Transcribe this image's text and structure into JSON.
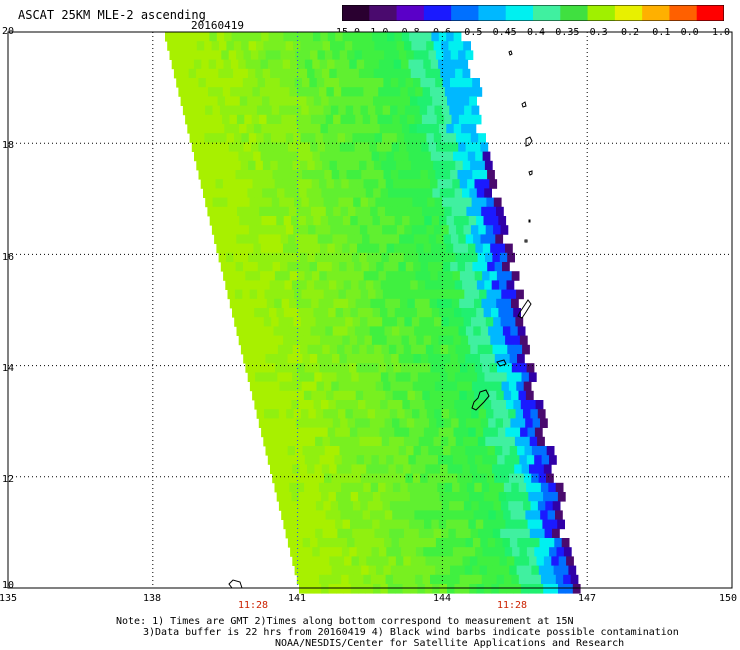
{
  "title": "ASCAT 25KM MLE-2 ascending",
  "date": "20160419",
  "colorbar": {
    "labels": [
      "-15.0",
      "-1.0",
      "-0.8",
      "-0.6",
      "-0.5",
      "-0.45",
      "-0.4",
      "-0.35",
      "-0.3",
      "-0.2",
      "-0.1",
      "0.0",
      "1.0"
    ],
    "colors": [
      "#2a0030",
      "#4a0a6e",
      "#5a00c8",
      "#1a1aff",
      "#0070ff",
      "#00b8ff",
      "#00f0f0",
      "#40f0a0",
      "#40e040",
      "#a0f000",
      "#e8f000",
      "#ffb000",
      "#ff6000",
      "#ff0000"
    ]
  },
  "axes": {
    "x_ticks": [
      "135",
      "138",
      "141",
      "144",
      "147",
      "150"
    ],
    "y_ticks": [
      "20",
      "18",
      "16",
      "14",
      "12",
      "10"
    ]
  },
  "times": [
    "11:28",
    "11:28"
  ],
  "notes": [
    "Note: 1) Times are GMT 2)Times along bottom correspond to measurement at 15N",
    "3)Data buffer is 22 hrs from 20160419 4) Black wind barbs indicate possible contamination",
    "NOAA/NESDIS/Center for Satellite Applications and Research"
  ]
}
